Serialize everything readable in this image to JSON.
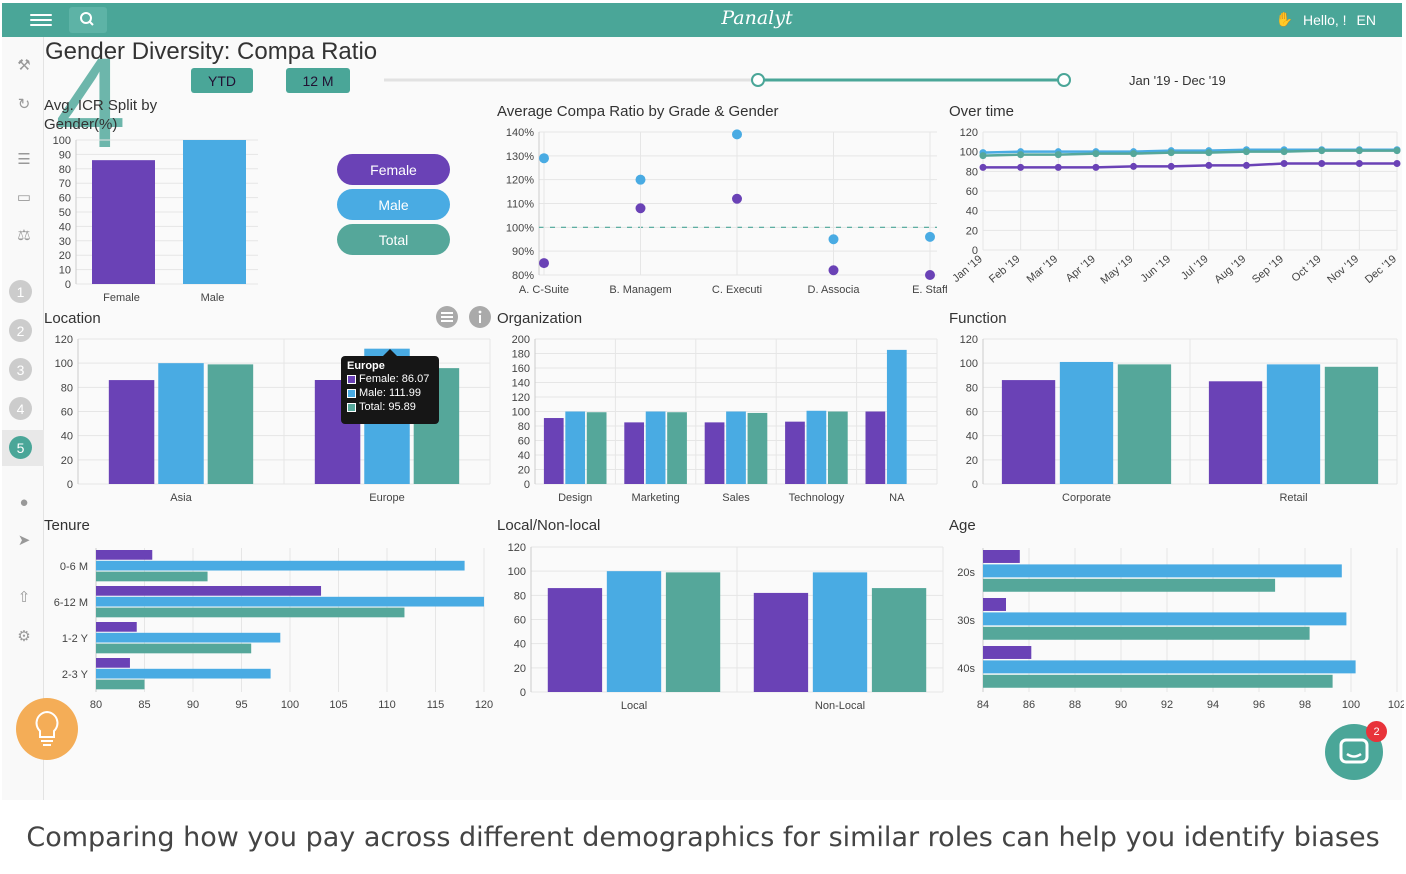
{
  "header": {
    "brand": "Panalyt",
    "greeting": "Hello, !",
    "language": "EN"
  },
  "sidebar": {
    "steps": [
      "1",
      "2",
      "3",
      "4",
      "5"
    ],
    "active_step": "5"
  },
  "page": {
    "title": "Gender Diversity: Compa Ratio",
    "step_number": "4",
    "period_buttons": [
      "YTD",
      "12 M"
    ],
    "date_range": "Jan '19 - Dec '19",
    "range_slider": {
      "start": 0.55,
      "end": 1.0
    }
  },
  "legend": {
    "female": "Female",
    "male": "Male",
    "total": "Total"
  },
  "colors": {
    "female": "#6a42b6",
    "male": "#49abe3",
    "total": "#55a79a",
    "accent": "#4aa698",
    "bulb": "#f4ad57",
    "badge": "#e8333a"
  },
  "tooltip": {
    "title": "Europe",
    "female": "Female: 86.07",
    "male": "Male: 111.99",
    "total": "Total: 95.89"
  },
  "chat": {
    "badge": "2"
  },
  "caption": "Comparing how you pay across different demographics for similar roles can help you identify biases",
  "chart_data": [
    {
      "id": "icr_split",
      "type": "bar",
      "title": "Avg. ICR Split by Gender(%)",
      "categories": [
        "Female",
        "Male"
      ],
      "values": [
        86,
        100
      ],
      "colors": [
        "#6a42b6",
        "#49abe3"
      ],
      "ylim": [
        0,
        100
      ],
      "yticks": [
        0,
        10,
        20,
        30,
        40,
        50,
        60,
        70,
        80,
        90,
        100
      ]
    },
    {
      "id": "grade_gender",
      "type": "scatter",
      "title": "Average Compa Ratio by Grade & Gender",
      "categories": [
        "A. C-Suite",
        "B. Managem",
        "C. Executi",
        "D. Associa",
        "E. Staff"
      ],
      "series": [
        {
          "name": "Male",
          "values": [
            129,
            120,
            139,
            95,
            96
          ]
        },
        {
          "name": "Female",
          "values": [
            85,
            108,
            112,
            82,
            80
          ]
        }
      ],
      "ylim": [
        80,
        140
      ],
      "yticks": [
        "80%",
        "90%",
        "100%",
        "110%",
        "120%",
        "130%",
        "140%"
      ],
      "reference_line": 100
    },
    {
      "id": "over_time",
      "type": "line",
      "title": "Over time",
      "categories": [
        "Jan '19",
        "Feb '19",
        "Mar '19",
        "Apr '19",
        "May '19",
        "Jun '19",
        "Jul '19",
        "Aug '19",
        "Sep '19",
        "Oct '19",
        "Nov '19",
        "Dec '19"
      ],
      "series": [
        {
          "name": "Male",
          "values": [
            99,
            100,
            100,
            100,
            100,
            101,
            101,
            102,
            102,
            102,
            102,
            102
          ]
        },
        {
          "name": "Total",
          "values": [
            96,
            97,
            97,
            98,
            98,
            99,
            99,
            100,
            100,
            101,
            101,
            101
          ]
        },
        {
          "name": "Female",
          "values": [
            84,
            84,
            84,
            84,
            85,
            85,
            86,
            86,
            88,
            88,
            88,
            88
          ]
        }
      ],
      "ylim": [
        0,
        120
      ],
      "yticks": [
        0,
        20,
        40,
        60,
        80,
        100,
        120
      ]
    },
    {
      "id": "location",
      "type": "bar",
      "title": "Location",
      "categories": [
        "Asia",
        "Europe"
      ],
      "series": [
        {
          "name": "Female",
          "values": [
            86,
            86.07
          ]
        },
        {
          "name": "Male",
          "values": [
            100,
            111.99
          ]
        },
        {
          "name": "Total",
          "values": [
            99,
            95.89
          ]
        }
      ],
      "ylim": [
        0,
        120
      ],
      "yticks": [
        0,
        20,
        40,
        60,
        80,
        100,
        120
      ]
    },
    {
      "id": "organization",
      "type": "bar",
      "title": "Organization",
      "categories": [
        "Design",
        "Marketing",
        "Sales",
        "Technology",
        "NA"
      ],
      "series": [
        {
          "name": "Female",
          "values": [
            91,
            85,
            85,
            86,
            100
          ]
        },
        {
          "name": "Male",
          "values": [
            100,
            100,
            100,
            101,
            185
          ]
        },
        {
          "name": "Total",
          "values": [
            99,
            99,
            98,
            100,
            null
          ]
        }
      ],
      "ylim": [
        0,
        200
      ],
      "yticks": [
        0,
        20,
        40,
        60,
        80,
        100,
        120,
        140,
        160,
        180,
        200
      ]
    },
    {
      "id": "function",
      "type": "bar",
      "title": "Function",
      "categories": [
        "Corporate",
        "Retail"
      ],
      "series": [
        {
          "name": "Female",
          "values": [
            86,
            85
          ]
        },
        {
          "name": "Male",
          "values": [
            101,
            99
          ]
        },
        {
          "name": "Total",
          "values": [
            99,
            97
          ]
        }
      ],
      "ylim": [
        0,
        120
      ],
      "yticks": [
        0,
        20,
        40,
        60,
        80,
        100,
        120
      ]
    },
    {
      "id": "tenure",
      "type": "bar",
      "orientation": "horizontal",
      "title": "Tenure",
      "categories": [
        "0-6 M",
        "6-12 M",
        "1-2 Y",
        "2-3 Y"
      ],
      "series": [
        {
          "name": "Female",
          "values": [
            85.8,
            103.2,
            84.2,
            83.5
          ]
        },
        {
          "name": "Male",
          "values": [
            118,
            120,
            99,
            98
          ]
        },
        {
          "name": "Total",
          "values": [
            91.5,
            111.8,
            96,
            85
          ]
        }
      ],
      "xlim": [
        80,
        120
      ],
      "xticks": [
        80,
        85,
        90,
        95,
        100,
        105,
        110,
        115,
        120
      ]
    },
    {
      "id": "local_nonlocal",
      "type": "bar",
      "title": "Local/Non-local",
      "categories": [
        "Local",
        "Non-Local"
      ],
      "series": [
        {
          "name": "Female",
          "values": [
            86,
            82
          ]
        },
        {
          "name": "Male",
          "values": [
            100,
            99
          ]
        },
        {
          "name": "Total",
          "values": [
            99,
            86
          ]
        }
      ],
      "ylim": [
        0,
        120
      ],
      "yticks": [
        0,
        20,
        40,
        60,
        80,
        100,
        120
      ]
    },
    {
      "id": "age",
      "type": "bar",
      "orientation": "horizontal",
      "title": "Age",
      "categories": [
        "20s",
        "30s",
        "40s"
      ],
      "series": [
        {
          "name": "Female",
          "values": [
            85.6,
            85,
            86.1
          ]
        },
        {
          "name": "Male",
          "values": [
            99.6,
            99.8,
            100.2
          ]
        },
        {
          "name": "Total",
          "values": [
            96.7,
            98.2,
            99.2
          ]
        }
      ],
      "xlim": [
        84,
        102
      ],
      "xticks": [
        84,
        86,
        88,
        90,
        92,
        94,
        96,
        98,
        100,
        102
      ]
    }
  ]
}
